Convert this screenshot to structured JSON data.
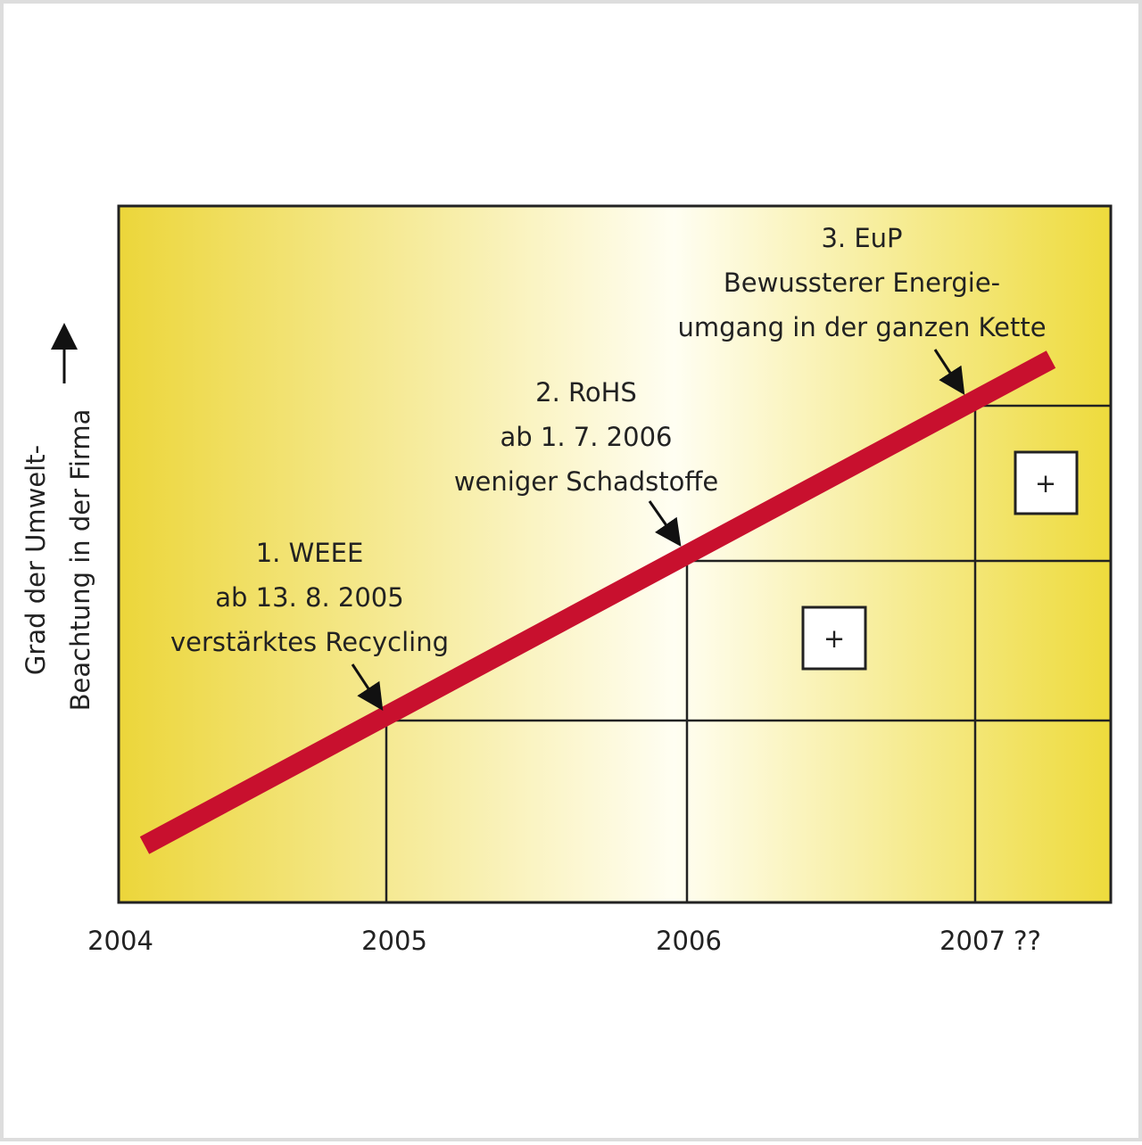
{
  "axis": {
    "y_label": [
      "Grad der Umwelt-",
      "Beachtung in der Firma"
    ],
    "x_labels": [
      "2004",
      "2005",
      "2006",
      "2007 ??"
    ]
  },
  "annotations": [
    {
      "lines": [
        "1. WEEE",
        "ab 13. 8. 2005",
        "verstärktes Recycling"
      ]
    },
    {
      "lines": [
        "2. RoHS",
        "ab 1. 7. 2006",
        "weniger Schadstoffe"
      ]
    },
    {
      "lines": [
        "3. EuP",
        "Bewussterer Energie-",
        "umgang in der ganzen Kette"
      ]
    }
  ],
  "boxes": [
    {
      "label": "+"
    },
    {
      "label": "+"
    }
  ]
}
